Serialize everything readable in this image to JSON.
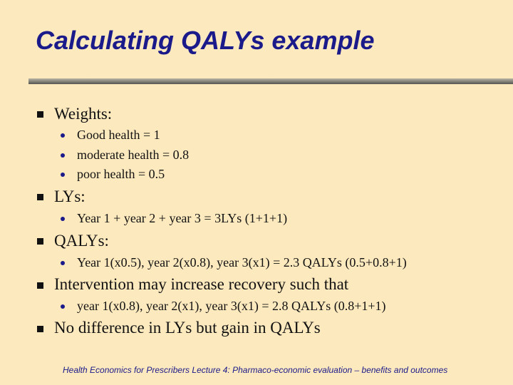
{
  "slide": {
    "title": "Calculating QALYs example",
    "sections": [
      {
        "heading": "Weights:",
        "items": [
          "Good health = 1",
          "moderate health = 0.8",
          "poor health = 0.5"
        ]
      },
      {
        "heading": "LYs:",
        "items": [
          "Year 1 + year 2 + year 3 = 3LYs (1+1+1)"
        ]
      },
      {
        "heading": "QALYs:",
        "items": [
          "Year 1(x0.5), year 2(x0.8), year 3(x1) = 2.3 QALYs (0.5+0.8+1)"
        ]
      },
      {
        "heading": "Intervention may increase recovery such that",
        "items": [
          "year 1(x0.8), year 2(x1), year 3(x1) = 2.8 QALYs (0.8+1+1)"
        ]
      },
      {
        "heading": "No difference in LYs but gain in QALYs",
        "items": []
      }
    ],
    "footer": "Health Economics for Prescribers Lecture 4: Pharmaco-economic evaluation – benefits and outcomes"
  }
}
